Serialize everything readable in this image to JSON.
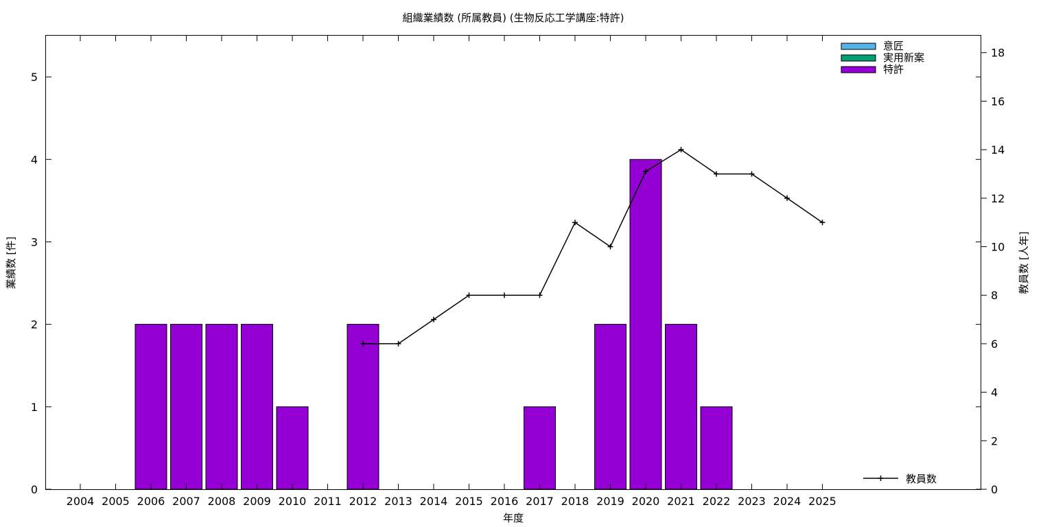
{
  "chart_data": {
    "type": "bar",
    "title": "組織業績数 (所属教員) (生物反応工学講座:特許)",
    "xlabel": "年度",
    "ylabel": "業績数 [件]",
    "y2label": "教員数 [人年]",
    "categories": [
      "2004",
      "2005",
      "2006",
      "2007",
      "2008",
      "2009",
      "2010",
      "2011",
      "2012",
      "2013",
      "2014",
      "2015",
      "2016",
      "2017",
      "2018",
      "2019",
      "2020",
      "2021",
      "2022",
      "2023",
      "2024",
      "2025"
    ],
    "ylim": [
      0,
      5.5
    ],
    "yticks": [
      0,
      1,
      2,
      3,
      4,
      5
    ],
    "y2lim": [
      0,
      18.7
    ],
    "y2ticks": [
      0,
      2,
      4,
      6,
      8,
      10,
      12,
      14,
      16,
      18
    ],
    "grid": false,
    "legend_position": "top-right",
    "series": [
      {
        "name": "意匠",
        "kind": "bar",
        "color": "#56b4e9",
        "values": [
          0,
          0,
          0,
          0,
          0,
          0,
          0,
          0,
          0,
          0,
          0,
          0,
          0,
          0,
          0,
          0,
          0,
          0,
          0,
          0,
          0,
          0
        ]
      },
      {
        "name": "実用新案",
        "kind": "bar",
        "color": "#009e73",
        "values": [
          0,
          0,
          0,
          0,
          0,
          0,
          0,
          0,
          0,
          0,
          0,
          0,
          0,
          0,
          0,
          0,
          0,
          0,
          0,
          0,
          0,
          0
        ]
      },
      {
        "name": "特許",
        "kind": "bar",
        "color": "#9400d3",
        "values": [
          0,
          0,
          2,
          2,
          2,
          2,
          1,
          0,
          2,
          0,
          0,
          0,
          0,
          1,
          0,
          2,
          4,
          2,
          1,
          0,
          0,
          0
        ]
      }
    ],
    "line_series": {
      "name": "教員数",
      "axis": "y2",
      "color": "#000000",
      "legend_position": "bottom-right",
      "points": [
        {
          "x": "2012",
          "y": 6
        },
        {
          "x": "2013",
          "y": 6
        },
        {
          "x": "2014",
          "y": 7
        },
        {
          "x": "2015",
          "y": 8
        },
        {
          "x": "2016",
          "y": 8
        },
        {
          "x": "2017",
          "y": 8
        },
        {
          "x": "2018",
          "y": 11
        },
        {
          "x": "2019",
          "y": 10
        },
        {
          "x": "2020",
          "y": 13.1
        },
        {
          "x": "2021",
          "y": 14
        },
        {
          "x": "2022",
          "y": 13
        },
        {
          "x": "2023",
          "y": 13
        },
        {
          "x": "2024",
          "y": 12
        },
        {
          "x": "2025",
          "y": 11
        }
      ]
    }
  }
}
